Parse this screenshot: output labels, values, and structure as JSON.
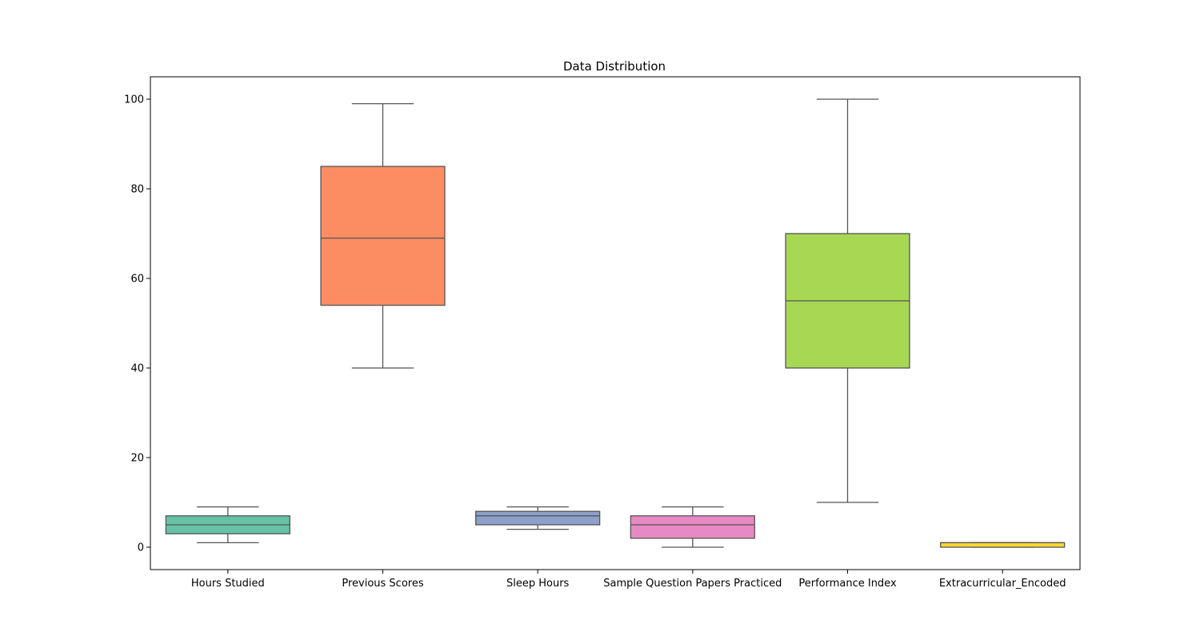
{
  "chart_data": {
    "type": "box",
    "title": "Data Distribution",
    "xlabel": "",
    "ylabel": "",
    "ylim": [
      -5,
      105
    ],
    "yticks": [
      0,
      20,
      40,
      60,
      80,
      100
    ],
    "grid": false,
    "legend": "none",
    "categories": [
      "Hours Studied",
      "Previous Scores",
      "Sleep Hours",
      "Sample Question Papers Practiced",
      "Performance Index",
      "Extracurricular_Encoded"
    ],
    "boxes": [
      {
        "name": "Hours Studied",
        "whisker_low": 1,
        "q1": 3,
        "median": 5,
        "q3": 7,
        "whisker_high": 9,
        "color": "#66c2a5"
      },
      {
        "name": "Previous Scores",
        "whisker_low": 40,
        "q1": 54,
        "median": 69,
        "q3": 85,
        "whisker_high": 99,
        "color": "#fc8d62"
      },
      {
        "name": "Sleep Hours",
        "whisker_low": 4,
        "q1": 5,
        "median": 7,
        "q3": 8,
        "whisker_high": 9,
        "color": "#8da0cb"
      },
      {
        "name": "Sample Question Papers Practiced",
        "whisker_low": 0,
        "q1": 2,
        "median": 5,
        "q3": 7,
        "whisker_high": 9,
        "color": "#e78ac3"
      },
      {
        "name": "Performance Index",
        "whisker_low": 10,
        "q1": 40,
        "median": 55,
        "q3": 70,
        "whisker_high": 100,
        "color": "#a6d854"
      },
      {
        "name": "Extracurricular_Encoded",
        "whisker_low": 0,
        "q1": 0,
        "median": 1,
        "q3": 1,
        "whisker_high": 1,
        "color": "#ffd92f"
      }
    ],
    "line_color": "#555555"
  }
}
